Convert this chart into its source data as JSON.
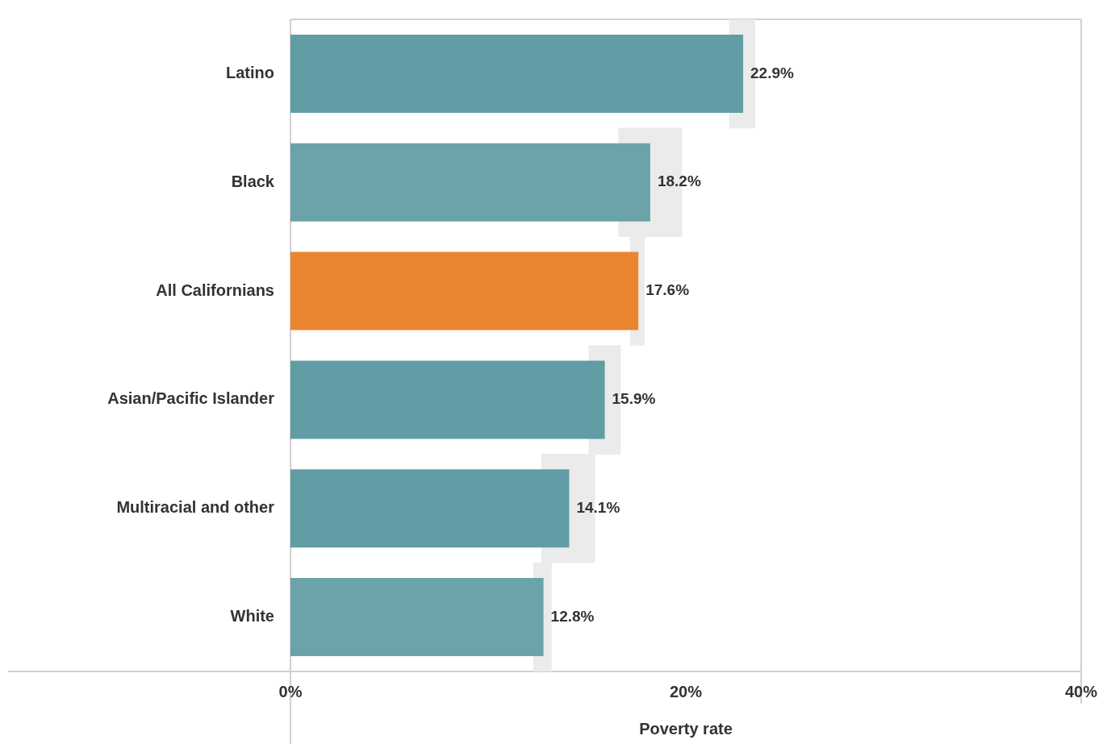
{
  "chart_data": {
    "type": "bar",
    "orientation": "horizontal",
    "categories": [
      "Latino",
      "Black",
      "All Californians",
      "Asian/Pacific Islander",
      "Multiracial and other",
      "White"
    ],
    "series": [
      {
        "values": [
          22.9,
          18.2,
          17.6,
          15.9,
          14.1,
          12.8
        ],
        "colors": [
          "#629ca4",
          "#6ba3a8",
          "#eb8530",
          "#629ca4",
          "#629ca4",
          "#6ba3a8"
        ],
        "value_labels": [
          "22.9%",
          "18.2%",
          "17.6%",
          "15.9%",
          "14.1%",
          "12.8%"
        ]
      },
      {
        "type": "bar",
        "color": "#ebebeb",
        "base": [
          22.2,
          16.6,
          17.2,
          15.1,
          12.7,
          12.3
        ],
        "values": [
          1.3,
          3.2,
          0.7,
          1.6,
          2.7,
          0.9
        ]
      }
    ],
    "xlabel": "Poverty rate",
    "xlim": [
      0,
      40
    ],
    "xticks": [
      {
        "value": 0,
        "label": "0%"
      },
      {
        "value": 20,
        "label": "20%"
      },
      {
        "value": 40,
        "label": "40%"
      }
    ]
  }
}
